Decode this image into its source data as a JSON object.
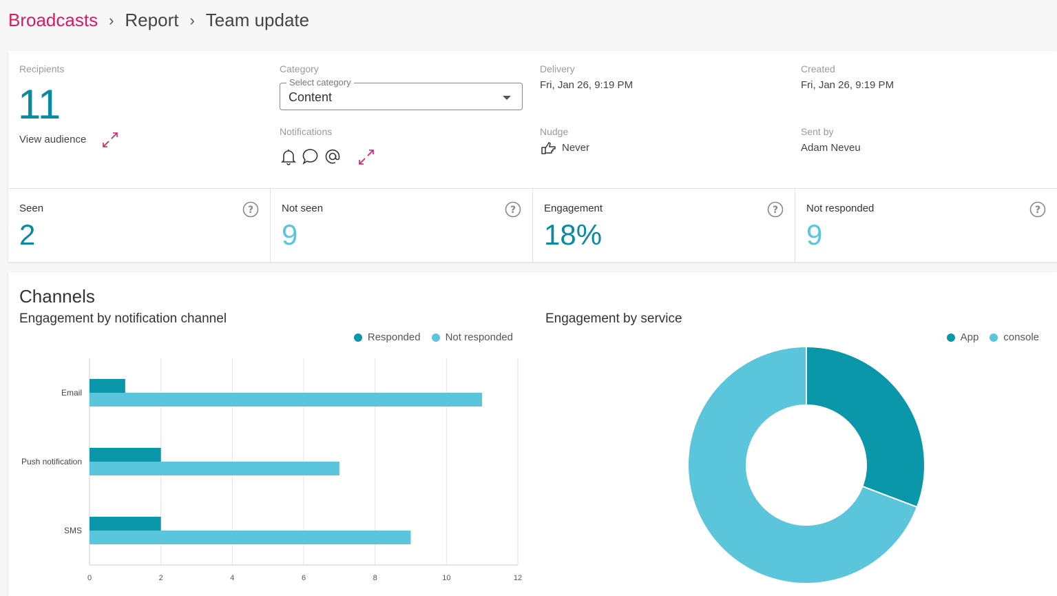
{
  "breadcrumb": {
    "root": "Broadcasts",
    "parent": "Report",
    "current": "Team update"
  },
  "recipients": {
    "label": "Recipients",
    "count": "11",
    "view_audience": "View audience"
  },
  "category": {
    "label": "Category",
    "legend": "Select category",
    "value": "Content"
  },
  "delivery": {
    "label": "Delivery",
    "value": "Fri, Jan 26, 9:19 PM"
  },
  "created": {
    "label": "Created",
    "value": "Fri, Jan 26, 9:19 PM"
  },
  "notifications": {
    "label": "Notifications",
    "icons": [
      "bell-icon",
      "chat-icon",
      "at-icon"
    ]
  },
  "nudge": {
    "label": "Nudge",
    "value": "Never"
  },
  "sent_by": {
    "label": "Sent by",
    "value": "Adam Neveu"
  },
  "stats": [
    {
      "label": "Seen",
      "value": "2",
      "color": "#0a8aa1"
    },
    {
      "label": "Not seen",
      "value": "9",
      "color": "#5ac5dc"
    },
    {
      "label": "Engagement",
      "value": "18%",
      "color": "#0a8aa1"
    },
    {
      "label": "Not responded",
      "value": "9",
      "color": "#5ac5dc"
    }
  ],
  "channels": {
    "title": "Channels",
    "bar_title": "Engagement by notification channel",
    "pie_title": "Engagement by service"
  },
  "colors": {
    "brand": "#d81b60",
    "dark_teal": "#0a97a9",
    "light_teal": "#5bc5dc"
  },
  "chart_data": [
    {
      "type": "bar",
      "orientation": "horizontal",
      "title": "Engagement by notification channel",
      "categories": [
        "Email",
        "Push notification",
        "SMS"
      ],
      "series": [
        {
          "name": "Responded",
          "values": [
            1,
            2,
            2
          ],
          "color": "#0a97a9"
        },
        {
          "name": "Not responded",
          "values": [
            11,
            7,
            9
          ],
          "color": "#5bc5dc"
        }
      ],
      "xlim": [
        0,
        12
      ],
      "xticks": [
        0,
        2,
        4,
        6,
        8,
        10,
        12
      ],
      "grid": true,
      "legend": "top-right"
    },
    {
      "type": "pie",
      "donut": true,
      "title": "Engagement by service",
      "slices": [
        {
          "name": "App",
          "value": 4,
          "color": "#0a97a9"
        },
        {
          "name": "console",
          "value": 9,
          "color": "#5bc5dc"
        }
      ],
      "legend": "top-right"
    }
  ]
}
